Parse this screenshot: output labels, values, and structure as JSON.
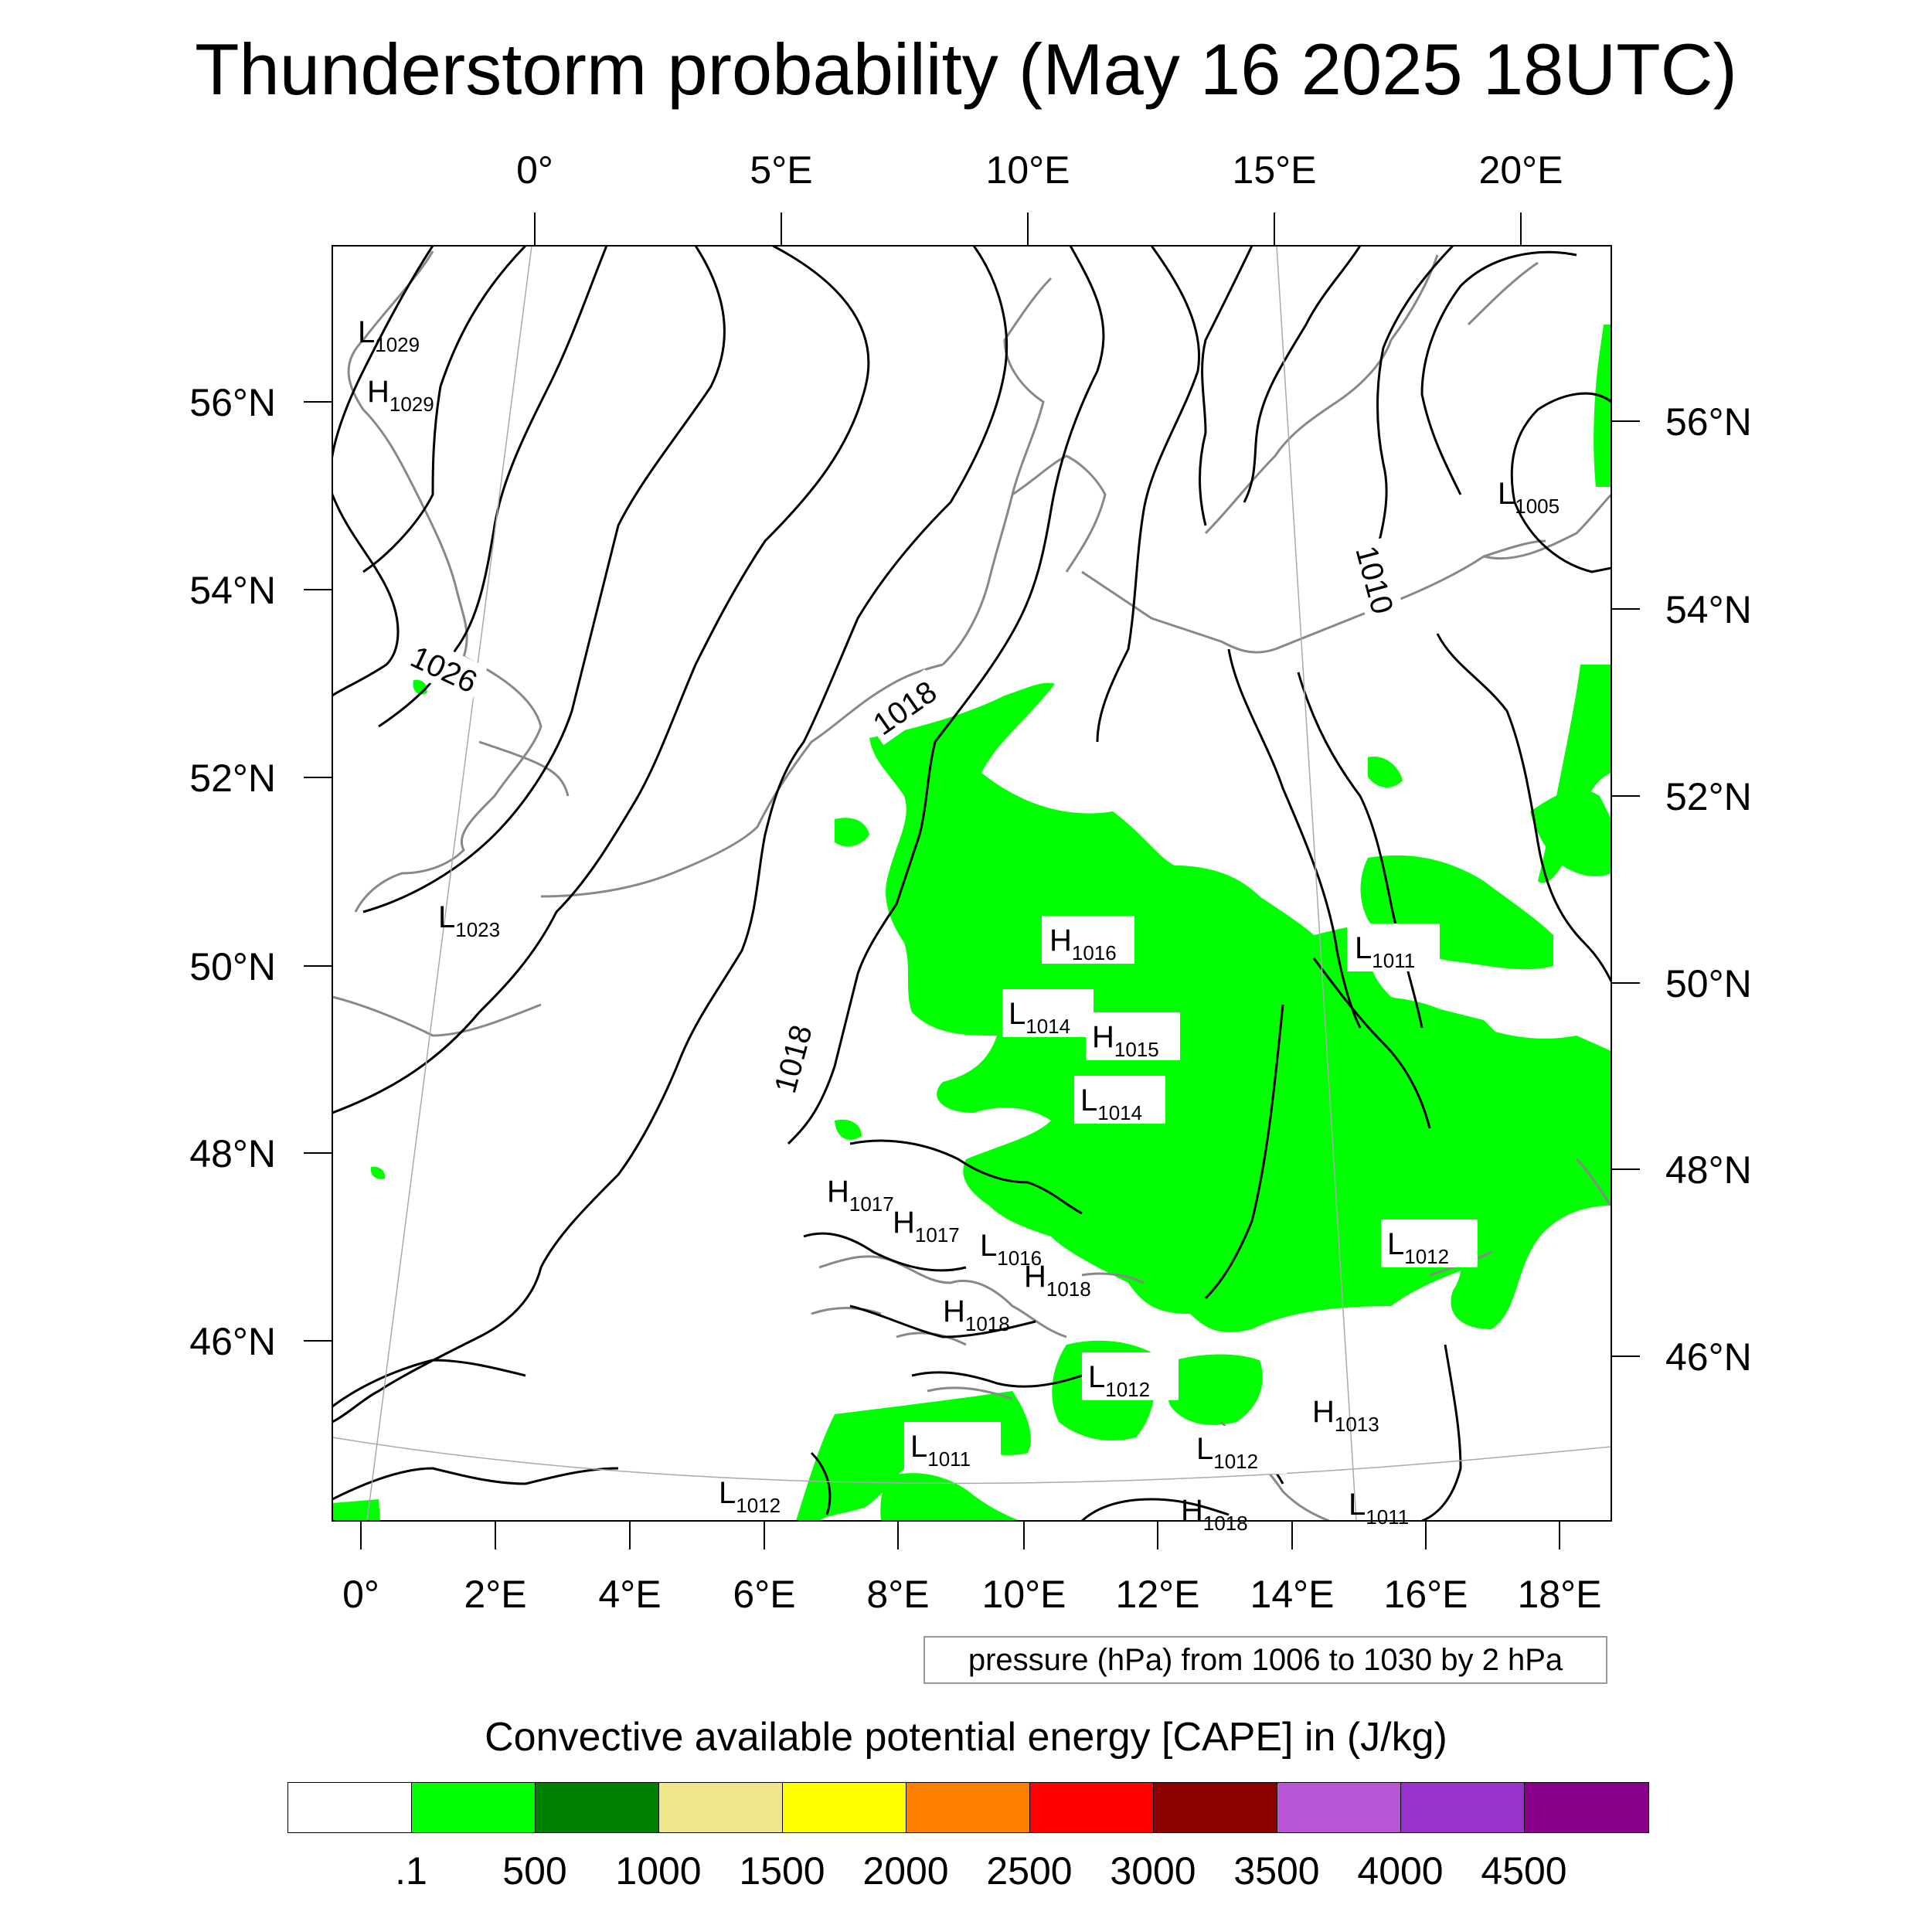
{
  "title": "Thunderstorm probability (May 16 2025 18UTC)",
  "top_longitude_labels": [
    "0°",
    "5°E",
    "10°E",
    "15°E",
    "20°E"
  ],
  "bottom_longitude_labels": [
    "0°",
    "2°E",
    "4°E",
    "6°E",
    "8°E",
    "10°E",
    "12°E",
    "14°E",
    "16°E",
    "18°E"
  ],
  "left_latitude_labels": [
    "56°N",
    "54°N",
    "52°N",
    "50°N",
    "48°N",
    "46°N"
  ],
  "right_latitude_labels": [
    "56°N",
    "54°N",
    "52°N",
    "50°N",
    "48°N",
    "46°N"
  ],
  "isobar_labels": [
    "1026",
    "1018",
    "1018",
    "1010"
  ],
  "pressure_centers": [
    {
      "type": "L",
      "value": "1029"
    },
    {
      "type": "H",
      "value": "1029"
    },
    {
      "type": "L",
      "value": "1023"
    },
    {
      "type": "L",
      "value": "1005"
    },
    {
      "type": "H",
      "value": "1016"
    },
    {
      "type": "L",
      "value": "1011"
    },
    {
      "type": "L",
      "value": "1014"
    },
    {
      "type": "H",
      "value": "1015"
    },
    {
      "type": "L",
      "value": "1014"
    },
    {
      "type": "H",
      "value": "1017"
    },
    {
      "type": "H",
      "value": "1017"
    },
    {
      "type": "L",
      "value": "1016"
    },
    {
      "type": "H",
      "value": "1018"
    },
    {
      "type": "H",
      "value": "1018"
    },
    {
      "type": "L",
      "value": "1012"
    },
    {
      "type": "L",
      "value": "1012"
    },
    {
      "type": "H",
      "value": "1013"
    },
    {
      "type": "L",
      "value": "1011"
    },
    {
      "type": "L",
      "value": "1012"
    },
    {
      "type": "L",
      "value": "1012"
    },
    {
      "type": "L",
      "value": "1011"
    },
    {
      "type": "H",
      "value": "1018"
    }
  ],
  "contour_info": "pressure (hPa) from 1006 to 1030 by 2 hPa",
  "colorbar": {
    "title": "Convective available potential energy [CAPE] in (J/kg)",
    "colors": [
      "#ffffff",
      "#00ff00",
      "#008000",
      "#f0e68c",
      "#ffff00",
      "#ff8000",
      "#ff0000",
      "#8b0000",
      "#b856d6",
      "#9932cc",
      "#8b008b"
    ],
    "labels": [
      ".1",
      "500",
      "1000",
      "1500",
      "2000",
      "2500",
      "3000",
      "3500",
      "4000",
      "4500"
    ]
  },
  "colors": {
    "cape_low": "#00ff00",
    "coastline": "#888888",
    "isobar": "#000000"
  }
}
